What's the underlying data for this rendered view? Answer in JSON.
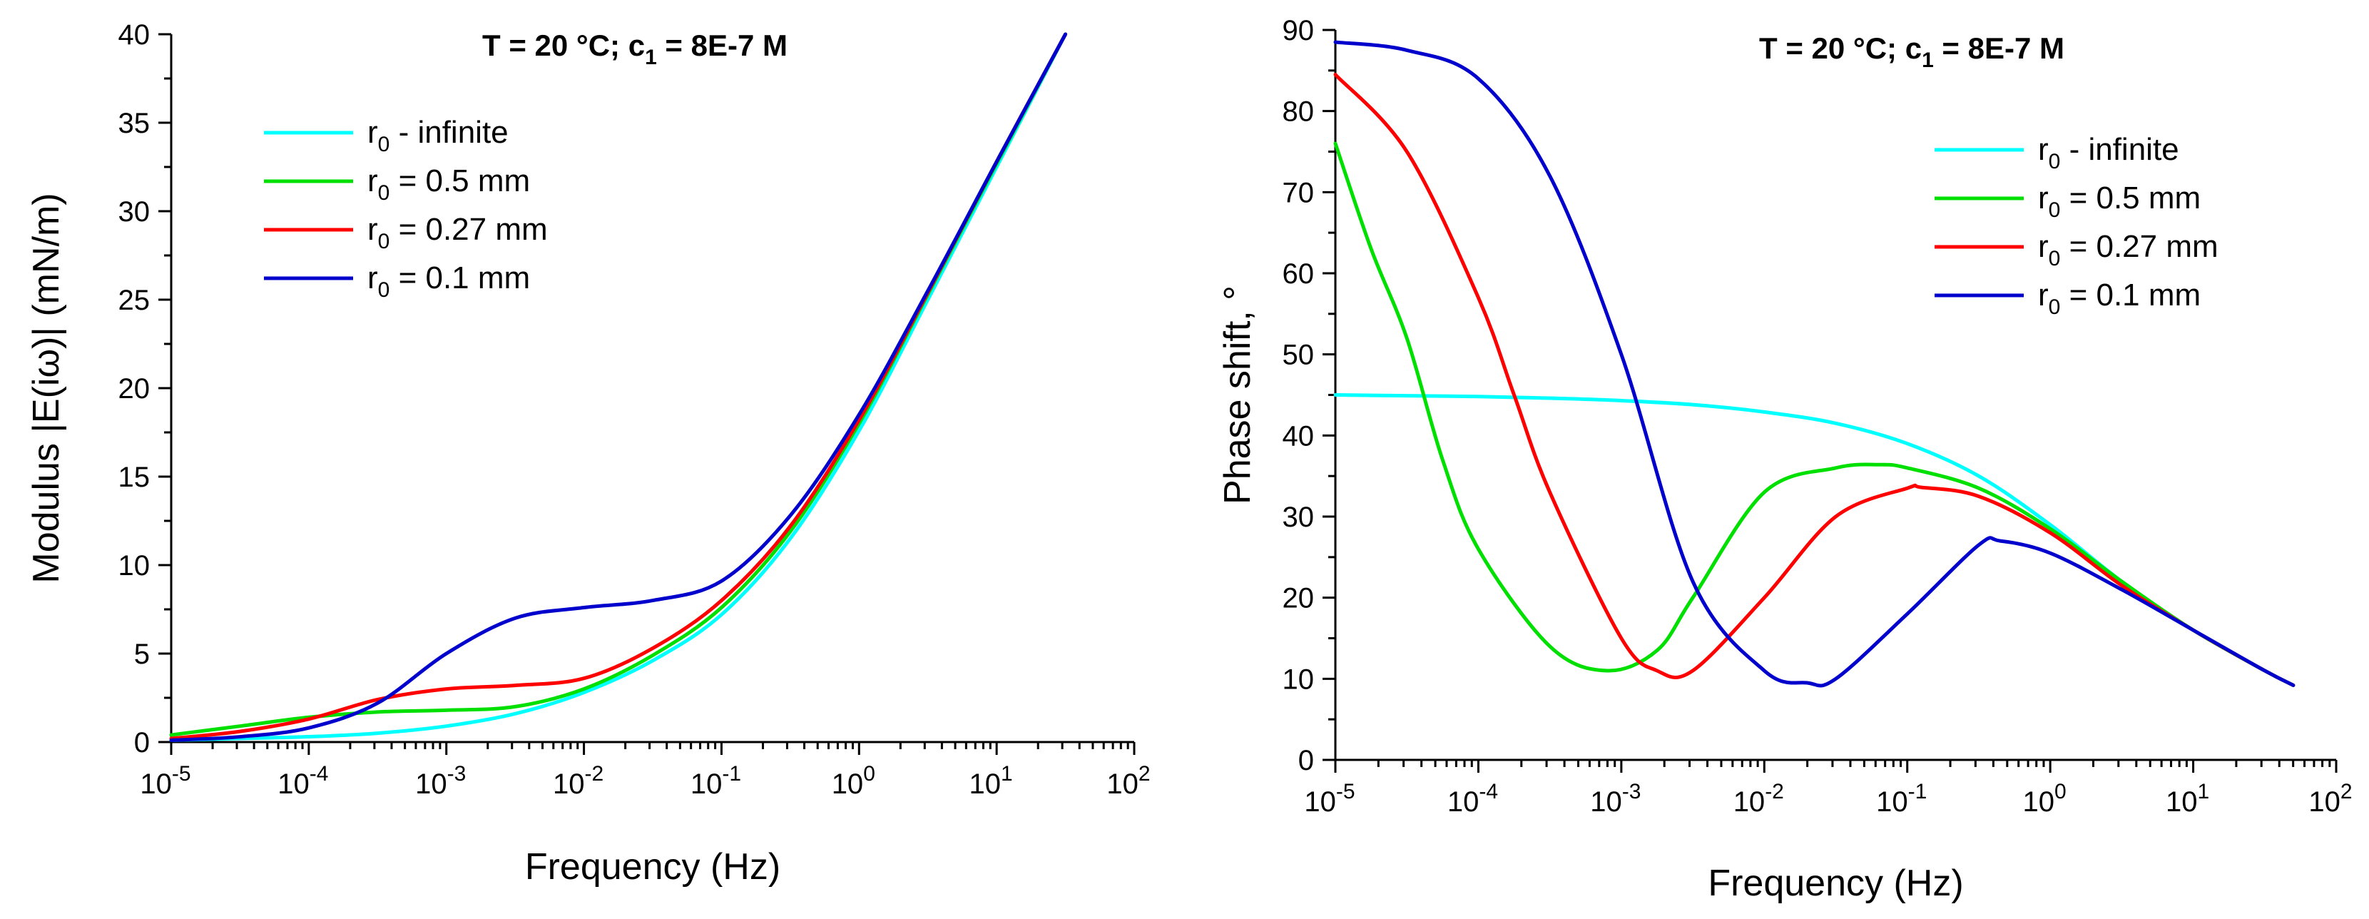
{
  "chart_data": [
    {
      "type": "line",
      "title_temp": "T = 20 °C;",
      "title_conc_prefix": "c",
      "title_conc_sub": "1",
      "title_conc_value": " = 8E-7 M",
      "xlabel": "Frequency (Hz)",
      "ylabel": "Modulus |E(iω)| (mN/m)",
      "xscale": "log",
      "xlim_exp": [
        -5,
        2
      ],
      "ylim": [
        0,
        40
      ],
      "ytick_step": 5,
      "x_tick_base": "10",
      "legend_position": "top-left",
      "series": [
        {
          "name": "r0 - infinite",
          "label_prefix": "r",
          "label_sub": "0",
          "label_text": " - infinite",
          "color": "#00FFFF",
          "log_x": [
            -5,
            -4.5,
            -4,
            -3.5,
            -3,
            -2.5,
            -2,
            -1.5,
            -1,
            -0.5,
            0,
            0.5,
            1,
            1.5
          ],
          "y": [
            0.1,
            0.2,
            0.3,
            0.5,
            0.9,
            1.6,
            2.8,
            4.6,
            7.2,
            11.5,
            17.6,
            25,
            32.5,
            40
          ]
        },
        {
          "name": "r0 = 0.5 mm",
          "label_prefix": "r",
          "label_sub": "0",
          "label_text": " = 0.5 mm",
          "color": "#00E000",
          "log_x": [
            -5,
            -4.5,
            -4,
            -3.5,
            -3,
            -2.5,
            -2,
            -1.5,
            -1,
            -0.5,
            0,
            0.5,
            1,
            1.5
          ],
          "y": [
            0.4,
            0.9,
            1.4,
            1.7,
            1.8,
            2.0,
            3.0,
            4.9,
            7.6,
            11.9,
            18.0,
            25.3,
            32.7,
            40
          ]
        },
        {
          "name": "r0 = 0.27 mm",
          "label_prefix": "r",
          "label_sub": "0",
          "label_text": " = 0.27 mm",
          "color": "#FF0000",
          "log_x": [
            -5,
            -4.5,
            -4,
            -3.5,
            -3,
            -2.5,
            -2,
            -1.5,
            -1,
            -0.5,
            0,
            0.5,
            1,
            1.5
          ],
          "y": [
            0.2,
            0.6,
            1.3,
            2.4,
            3.0,
            3.2,
            3.6,
            5.3,
            8.0,
            12.2,
            18.2,
            25.4,
            32.8,
            40
          ]
        },
        {
          "name": "r0 = 0.1 mm",
          "label_prefix": "r",
          "label_sub": "0",
          "label_text": " = 0.1 mm",
          "color": "#0000CC",
          "log_x": [
            -5,
            -4.5,
            -4,
            -3.5,
            -3,
            -2.5,
            -2,
            -1.5,
            -1,
            -0.5,
            0,
            0.5,
            1,
            1.5
          ],
          "y": [
            0.1,
            0.3,
            0.8,
            2.2,
            5.0,
            7.0,
            7.6,
            8.0,
            9.1,
            12.8,
            18.5,
            25.5,
            32.8,
            40
          ]
        }
      ]
    },
    {
      "type": "line",
      "title_temp": "T = 20 °C;",
      "title_conc_prefix": "c",
      "title_conc_sub": "1",
      "title_conc_value": " = 8E-7 M",
      "xlabel": "Frequency (Hz)",
      "ylabel": "Phase shift, °",
      "xscale": "log",
      "xlim_exp": [
        -5,
        2
      ],
      "ylim": [
        0,
        90
      ],
      "ytick_step": 10,
      "x_tick_base": "10",
      "legend_position": "top-right",
      "series": [
        {
          "name": "r0 - infinite",
          "label_prefix": "r",
          "label_sub": "0",
          "label_text": " - infinite",
          "color": "#00FFFF",
          "log_x": [
            -5,
            -4.5,
            -4,
            -3.5,
            -3,
            -2.5,
            -2,
            -1.5,
            -1,
            -0.5,
            0,
            0.5,
            1,
            1.5,
            1.7
          ],
          "y": [
            45,
            44.9,
            44.8,
            44.6,
            44.3,
            43.8,
            42.9,
            41.5,
            39,
            35,
            29,
            22,
            16,
            11,
            9.2
          ]
        },
        {
          "name": "r0 = 0.5 mm",
          "label_prefix": "r",
          "label_sub": "0",
          "label_text": " = 0.5 mm",
          "color": "#00E000",
          "log_x": [
            -5,
            -4.75,
            -4.5,
            -4.25,
            -4,
            -3.5,
            -3.1,
            -2.75,
            -2.5,
            -2,
            -1.5,
            -1.2,
            -1,
            -0.5,
            0,
            0.5,
            1,
            1.5,
            1.7
          ],
          "y": [
            76,
            63,
            52,
            37,
            26,
            14,
            11,
            13.5,
            20,
            33,
            36,
            36.4,
            36,
            33.5,
            28.5,
            22,
            16,
            11,
            9.2
          ]
        },
        {
          "name": "r0 = 0.27 mm",
          "label_prefix": "r",
          "label_sub": "0",
          "label_text": " = 0.27 mm",
          "color": "#FF0000",
          "log_x": [
            -5,
            -4.5,
            -4,
            -3.75,
            -3.5,
            -3,
            -2.75,
            -2.5,
            -2,
            -1.5,
            -1,
            -0.9,
            -0.5,
            0,
            0.5,
            1,
            1.5,
            1.7
          ],
          "y": [
            84.5,
            75,
            57,
            45,
            33,
            15,
            11,
            11,
            20,
            30,
            33.5,
            33.6,
            32.5,
            28,
            21.5,
            16,
            11,
            9.2
          ]
        },
        {
          "name": "r0 = 0.1 mm",
          "label_prefix": "r",
          "label_sub": "0",
          "label_text": " = 0.1 mm",
          "color": "#0000CC",
          "log_x": [
            -5,
            -4.5,
            -4,
            -3.5,
            -3,
            -2.5,
            -2,
            -1.7,
            -1.5,
            -1,
            -0.5,
            -0.35,
            0,
            0.5,
            1,
            1.5,
            1.7
          ],
          "y": [
            88.5,
            87.5,
            84,
            72,
            50,
            22,
            11,
            9.5,
            10,
            18,
            26.5,
            27,
            25.5,
            21,
            16,
            11,
            9.2
          ]
        }
      ]
    }
  ]
}
